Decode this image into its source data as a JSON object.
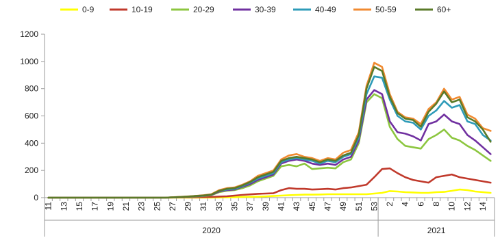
{
  "chart_data": {
    "type": "line",
    "title": "",
    "xlabel": "",
    "ylabel": "",
    "ylim": [
      0,
      1200
    ],
    "yticks": [
      0,
      200,
      400,
      600,
      800,
      1000,
      1200
    ],
    "grid": false,
    "legend_position": "top",
    "x_start_week": 11,
    "x_tick_labels": [
      "11",
      "13",
      "15",
      "17",
      "19",
      "21",
      "23",
      "25",
      "27",
      "29",
      "31",
      "33",
      "35",
      "37",
      "39",
      "41",
      "43",
      "45",
      "47",
      "49",
      "51",
      "53",
      "2",
      "4",
      "6",
      "8",
      "10",
      "12",
      "14"
    ],
    "year_groups": [
      {
        "label": "2020",
        "first_index": 0,
        "last_index": 42
      },
      {
        "label": "2021",
        "first_index": 43,
        "last_index": 57
      }
    ],
    "series": [
      {
        "name": "0-9",
        "color": "#ffff00",
        "values": [
          0,
          0,
          0,
          0,
          0,
          0,
          0,
          0,
          0,
          0,
          0,
          0,
          0,
          0,
          0,
          0,
          0,
          0,
          0,
          0,
          0,
          0,
          1,
          2,
          3,
          5,
          6,
          7,
          9,
          12,
          15,
          18,
          20,
          22,
          22,
          23,
          25,
          25,
          25,
          25,
          25,
          25,
          30,
          35,
          48,
          45,
          40,
          38,
          35,
          35,
          40,
          42,
          50,
          60,
          55,
          45,
          40,
          35
        ]
      },
      {
        "name": "10-19",
        "color": "#c0392b",
        "values": [
          0,
          0,
          0,
          0,
          0,
          0,
          0,
          0,
          0,
          0,
          0,
          0,
          0,
          0,
          0,
          0,
          1,
          2,
          3,
          3,
          4,
          5,
          8,
          10,
          15,
          20,
          24,
          28,
          30,
          32,
          55,
          70,
          65,
          65,
          60,
          62,
          65,
          60,
          70,
          75,
          85,
          95,
          150,
          210,
          215,
          180,
          150,
          130,
          120,
          110,
          150,
          160,
          170,
          150,
          140,
          130,
          120,
          110
        ]
      },
      {
        "name": "20-29",
        "color": "#8cc63f",
        "values": [
          0,
          0,
          0,
          0,
          0,
          0,
          0,
          0,
          0,
          0,
          0,
          0,
          0,
          0,
          0,
          0,
          2,
          4,
          6,
          8,
          12,
          18,
          40,
          50,
          55,
          70,
          90,
          120,
          140,
          160,
          230,
          240,
          230,
          250,
          210,
          215,
          220,
          215,
          260,
          280,
          400,
          700,
          760,
          730,
          520,
          430,
          380,
          370,
          360,
          430,
          460,
          500,
          440,
          420,
          380,
          350,
          310,
          270
        ]
      },
      {
        "name": "30-39",
        "color": "#7030a0",
        "values": [
          0,
          0,
          0,
          0,
          0,
          0,
          0,
          0,
          0,
          0,
          0,
          0,
          0,
          0,
          0,
          0,
          2,
          4,
          7,
          10,
          14,
          20,
          45,
          55,
          60,
          80,
          100,
          130,
          150,
          170,
          250,
          270,
          280,
          270,
          250,
          240,
          250,
          240,
          280,
          300,
          420,
          720,
          790,
          760,
          560,
          480,
          470,
          450,
          420,
          540,
          560,
          610,
          560,
          540,
          460,
          420,
          370,
          320
        ]
      },
      {
        "name": "40-49",
        "color": "#2e9bb8",
        "values": [
          0,
          0,
          0,
          0,
          0,
          0,
          0,
          0,
          0,
          0,
          0,
          0,
          0,
          0,
          0,
          0,
          2,
          5,
          8,
          12,
          16,
          22,
          50,
          60,
          65,
          85,
          110,
          140,
          160,
          180,
          260,
          280,
          290,
          280,
          270,
          250,
          270,
          260,
          300,
          320,
          440,
          760,
          890,
          880,
          720,
          600,
          560,
          550,
          500,
          600,
          640,
          710,
          660,
          680,
          560,
          540,
          460,
          420
        ]
      },
      {
        "name": "50-59",
        "color": "#f08a30",
        "values": [
          0,
          0,
          0,
          0,
          0,
          0,
          0,
          0,
          0,
          0,
          0,
          0,
          0,
          0,
          0,
          0,
          3,
          6,
          9,
          13,
          18,
          25,
          55,
          70,
          75,
          95,
          120,
          160,
          180,
          200,
          280,
          310,
          320,
          300,
          290,
          270,
          290,
          280,
          330,
          350,
          480,
          820,
          990,
          960,
          760,
          630,
          590,
          580,
          540,
          650,
          700,
          800,
          720,
          740,
          610,
          580,
          510,
          490
        ]
      },
      {
        "name": "60+",
        "color": "#5a7a28",
        "values": [
          0,
          0,
          0,
          0,
          0,
          0,
          0,
          0,
          0,
          0,
          0,
          0,
          0,
          0,
          0,
          0,
          2,
          5,
          8,
          12,
          16,
          22,
          50,
          65,
          70,
          90,
          115,
          150,
          170,
          190,
          270,
          290,
          300,
          290,
          280,
          260,
          280,
          270,
          310,
          330,
          460,
          800,
          960,
          930,
          740,
          620,
          580,
          570,
          520,
          630,
          690,
          780,
          700,
          720,
          590,
          560,
          500,
          410
        ]
      }
    ]
  }
}
